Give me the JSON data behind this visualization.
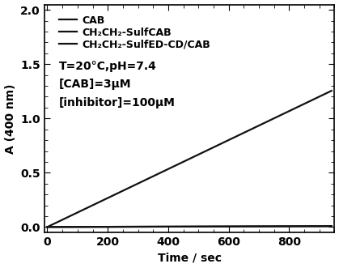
{
  "title": "",
  "xlabel": "Time / sec",
  "ylabel": "A (400 nm)",
  "xlim": [
    -10,
    950
  ],
  "ylim": [
    -0.05,
    2.05
  ],
  "xticks": [
    0,
    200,
    400,
    600,
    800
  ],
  "yticks": [
    0.0,
    0.5,
    1.0,
    1.5,
    2.0
  ],
  "line1_label": "CAB",
  "line2_label": "CH₂CH₂-SulfCAB",
  "line3_label": "CH₂CH₂-SulfED-CD/CAB",
  "annotation1": "T=20°C,pH=7.4",
  "annotation2": "[CAB]=3μM",
  "annotation3": "[inhibitor]=100μM",
  "line1_color": "#111111",
  "line2_color": "#111111",
  "line3_color": "#111111",
  "line1_slope": 0.001335,
  "line2_slope": 8e-06,
  "line3_slope": 8e-06,
  "bg_color": "#ffffff",
  "linewidth": 1.6,
  "font_size": 10,
  "annotation_font_size": 10,
  "legend_font_size": 9
}
